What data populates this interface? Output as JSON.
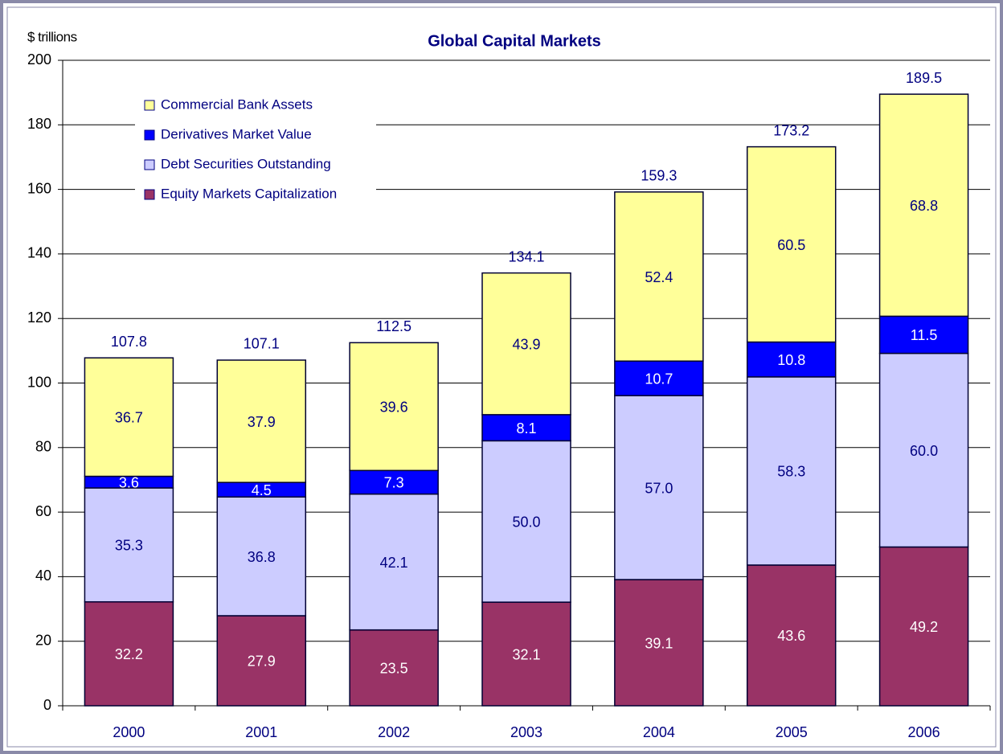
{
  "chart_data": {
    "type": "stacked_bar",
    "title": "Global Capital Markets",
    "y_label": "$ trillions",
    "categories": [
      "2000",
      "2001",
      "2002",
      "2003",
      "2004",
      "2005",
      "2006"
    ],
    "series": [
      {
        "name": "Equity Markets Capitalization",
        "color": "#993366",
        "values": [
          32.2,
          27.9,
          23.5,
          32.1,
          39.1,
          43.6,
          49.2
        ],
        "value_labels": [
          "32.2",
          "27.9",
          "23.5",
          "32.1",
          "39.1",
          "43.6",
          "49.2"
        ]
      },
      {
        "name": "Debt Securities Outstanding",
        "color": "#ccccff",
        "values": [
          35.3,
          36.8,
          42.1,
          50.0,
          57.0,
          58.3,
          60.0
        ],
        "value_labels": [
          "35.3",
          "36.8",
          "42.1",
          "50.0",
          "57.0",
          "58.3",
          "60.0"
        ]
      },
      {
        "name": "Derivatives Market Value",
        "color": "#0000ff",
        "values": [
          3.6,
          4.5,
          7.3,
          8.1,
          10.7,
          10.8,
          11.5
        ],
        "value_labels": [
          "3.6",
          "4.5",
          "7.3",
          "8.1",
          "10.7",
          "10.8",
          "11.5"
        ]
      },
      {
        "name": "Commercial Bank Assets",
        "color": "#ffff99",
        "values": [
          36.7,
          37.9,
          39.6,
          43.9,
          52.4,
          60.5,
          68.8
        ],
        "value_labels": [
          "36.7",
          "37.9",
          "39.6",
          "43.9",
          "52.4",
          "60.5",
          "68.8"
        ]
      }
    ],
    "totals": [
      107.8,
      107.1,
      112.5,
      134.1,
      159.3,
      173.2,
      189.5
    ],
    "ylim": [
      0,
      200
    ],
    "yticks": [
      0,
      20,
      40,
      60,
      80,
      100,
      120,
      140,
      160,
      180,
      200
    ],
    "grid": true,
    "legend": "upper left"
  }
}
